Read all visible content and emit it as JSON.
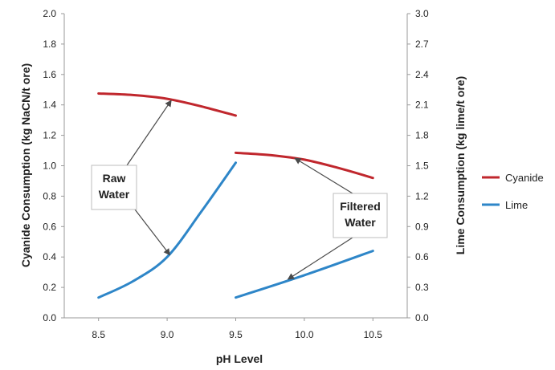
{
  "chart_data": {
    "type": "line",
    "title": "",
    "xlabel": "pH Level",
    "ylabel_left": "Cyanide Consumption (kg NaCN/t ore)",
    "ylabel_right": "Lime Consumption (kg lime/t ore)",
    "xlim": [
      8.25,
      10.75
    ],
    "x_ticks": [
      "8.5",
      "9.0",
      "9.5",
      "10.0",
      "10.5"
    ],
    "x_tick_values": [
      8.5,
      9.0,
      9.5,
      10.0,
      10.5
    ],
    "ylim_left": [
      0,
      2.0
    ],
    "y_ticks_left": [
      "0.0",
      "0.2",
      "0.4",
      "0.6",
      "0.8",
      "1.0",
      "1.2",
      "1.4",
      "1.6",
      "1.8",
      "2.0"
    ],
    "ylim_right": [
      0,
      3.0
    ],
    "y_ticks_right": [
      "0.0",
      "0.3",
      "0.6",
      "0.9",
      "1.2",
      "1.5",
      "1.8",
      "2.1",
      "2.4",
      "2.7",
      "3.0"
    ],
    "grid": false,
    "legend_position": "right",
    "series": [
      {
        "name": "Cyanide",
        "axis": "left",
        "color": "#c0272d",
        "segments": [
          {
            "x": [
              8.5,
              8.75,
              9.0,
              9.25,
              9.5
            ],
            "y": [
              1.475,
              1.465,
              1.44,
              1.39,
              1.33
            ]
          },
          {
            "x": [
              9.5,
              9.75,
              10.0,
              10.25,
              10.5
            ],
            "y": [
              1.085,
              1.07,
              1.04,
              0.985,
              0.92
            ]
          }
        ]
      },
      {
        "name": "Lime",
        "axis": "right",
        "color": "#2e86c8",
        "segments": [
          {
            "x": [
              8.5,
              8.75,
              9.0,
              9.25,
              9.5
            ],
            "y": [
              0.2,
              0.36,
              0.6,
              1.05,
              1.53
            ]
          },
          {
            "x": [
              9.5,
              10.0,
              10.5
            ],
            "y": [
              0.2,
              0.42,
              0.66
            ]
          }
        ]
      }
    ],
    "annotations": [
      {
        "lines": [
          "Raw",
          "Water"
        ],
        "arrows": [
          {
            "to_x": 9.03,
            "to_y": 1.43,
            "axis": "left"
          },
          {
            "to_x": 9.02,
            "to_y": 0.62,
            "axis": "right"
          }
        ]
      },
      {
        "lines": [
          "Filtered",
          "Water"
        ],
        "arrows": [
          {
            "to_x": 9.93,
            "to_y": 1.05,
            "axis": "left"
          },
          {
            "to_x": 9.88,
            "to_y": 0.38,
            "axis": "right"
          }
        ]
      }
    ]
  }
}
